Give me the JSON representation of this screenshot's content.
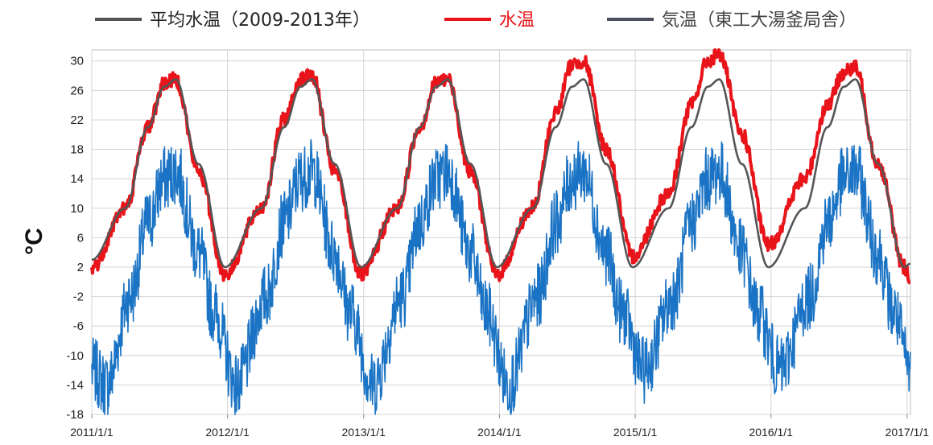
{
  "chart_data": {
    "type": "line",
    "title": "",
    "xlabel": "",
    "ylabel": "°C",
    "ylim": [
      -18,
      31.5
    ],
    "xlim": [
      "2011-01-01",
      "2017-01-10"
    ],
    "grid": true,
    "legend_position": "top",
    "yticks": [
      "30",
      "26",
      "22",
      "18",
      "14",
      "10",
      "6",
      "2",
      "-2",
      "-6",
      "-10",
      "-14",
      "-18"
    ],
    "xticks": [
      "2011/1/1",
      "2012/1/1",
      "2013/1/1",
      "2014/1/1",
      "2015/1/1",
      "2016/1/1",
      "2017/1/1"
    ],
    "series": [
      {
        "name": "平均水温（2009-2013年）",
        "color": "#555555",
        "style": "smooth",
        "x": [
          "2011-01-01",
          "2011-04-01",
          "2011-06-01",
          "2011-07-15",
          "2011-08-15",
          "2011-10-15",
          "2011-12-25",
          "2012-04-01",
          "2012-06-01",
          "2012-07-15",
          "2012-08-15",
          "2012-10-15",
          "2012-12-25",
          "2013-04-01",
          "2013-06-01",
          "2013-07-15",
          "2013-08-15",
          "2013-10-15",
          "2013-12-25",
          "2014-04-01",
          "2014-06-01",
          "2014-07-15",
          "2014-08-15",
          "2014-10-15",
          "2014-12-25",
          "2015-04-01",
          "2015-06-01",
          "2015-07-15",
          "2015-08-15",
          "2015-10-15",
          "2015-12-25",
          "2016-04-01",
          "2016-06-01",
          "2016-07-15",
          "2016-08-15",
          "2016-10-15",
          "2016-12-25",
          "2017-01-10"
        ],
        "y": [
          3,
          10,
          21,
          26.5,
          27.5,
          16,
          2,
          10,
          21,
          26.5,
          27.5,
          16,
          2,
          10,
          21,
          26.5,
          27.5,
          16,
          2,
          10,
          21,
          26.5,
          27.5,
          16,
          2,
          10,
          21,
          26.5,
          27.5,
          16,
          2,
          10,
          21,
          26.5,
          27.5,
          16,
          2,
          2.5
        ]
      },
      {
        "name": "水温",
        "color": "#e8141a",
        "style": "noisy",
        "x": [
          "2011-01-01",
          "2011-04-01",
          "2011-06-01",
          "2011-07-15",
          "2011-08-15",
          "2011-10-15",
          "2011-12-25",
          "2012-04-01",
          "2012-06-01",
          "2012-07-15",
          "2012-08-15",
          "2012-10-15",
          "2012-12-25",
          "2013-04-01",
          "2013-06-01",
          "2013-07-15",
          "2013-08-15",
          "2013-10-15",
          "2013-12-25",
          "2014-04-01",
          "2014-06-01",
          "2014-07-15",
          "2014-08-15",
          "2014-10-15",
          "2014-12-25",
          "2015-04-01",
          "2015-06-01",
          "2015-07-15",
          "2015-08-15",
          "2015-10-15",
          "2015-12-25",
          "2016-04-01",
          "2016-06-01",
          "2016-07-15",
          "2016-08-15",
          "2016-10-15",
          "2016-12-25",
          "2017-01-10"
        ],
        "y": [
          2,
          10,
          21,
          27,
          27.5,
          15,
          1,
          10,
          22,
          27.5,
          28,
          15,
          1,
          10,
          21,
          27,
          27.5,
          15,
          1,
          10,
          23,
          29.5,
          30,
          18,
          3.5,
          12,
          24,
          30,
          31,
          20,
          5,
          14,
          24,
          28.5,
          29,
          16,
          2,
          0.5
        ]
      },
      {
        "name": "気温（東工大湯釜局舎）",
        "color": "#1a73c4",
        "style": "noisy",
        "x": [
          "2011-01-01",
          "2011-02-10",
          "2011-04-15",
          "2011-06-01",
          "2011-07-15",
          "2011-08-15",
          "2011-10-15",
          "2011-11-25",
          "2012-01-25",
          "2012-04-15",
          "2012-06-01",
          "2012-07-15",
          "2012-08-15",
          "2012-10-15",
          "2012-11-25",
          "2013-01-25",
          "2013-04-15",
          "2013-06-01",
          "2013-07-15",
          "2013-08-15",
          "2013-10-15",
          "2013-11-25",
          "2014-01-25",
          "2014-04-15",
          "2014-06-01",
          "2014-07-15",
          "2014-08-15",
          "2014-10-15",
          "2014-11-25",
          "2015-01-25",
          "2015-04-15",
          "2015-06-01",
          "2015-07-15",
          "2015-08-15",
          "2015-10-15",
          "2015-11-25",
          "2016-01-25",
          "2016-04-15",
          "2016-06-01",
          "2016-07-15",
          "2016-08-15",
          "2016-10-15",
          "2016-11-25",
          "2017-01-10"
        ],
        "y": [
          -12,
          -14,
          -2,
          8,
          14,
          15,
          4,
          -4,
          -14,
          -2,
          8,
          14,
          15,
          4,
          -4,
          -14,
          -2,
          8,
          14,
          15,
          4,
          -4,
          -14,
          -2,
          8,
          14,
          15,
          4,
          -4,
          -12,
          -2,
          8,
          14,
          15,
          4,
          -4,
          -12,
          -2,
          8,
          14,
          15,
          4,
          -4,
          -12
        ]
      }
    ]
  }
}
